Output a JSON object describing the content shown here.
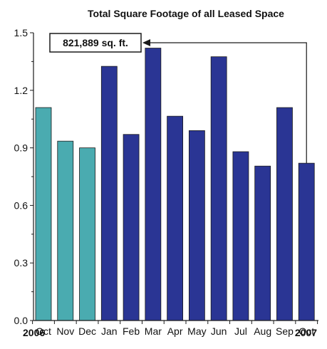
{
  "chart_data": {
    "type": "bar",
    "title": "Total Square Footage of all Leased Space",
    "xlabel": "",
    "ylabel": "",
    "ylim": [
      0,
      1.5
    ],
    "yticks": [
      "0.0",
      "0.3",
      "0.6",
      "0.9",
      "1.2",
      "1.5"
    ],
    "categories": [
      "Oct",
      "Nov",
      "Dec",
      "Jan",
      "Feb",
      "Mar",
      "Apr",
      "May",
      "Jun",
      "Jul",
      "Aug",
      "Sep",
      "Oct"
    ],
    "values": [
      1.11,
      0.935,
      0.9,
      1.325,
      0.97,
      1.42,
      1.065,
      0.99,
      1.375,
      0.88,
      0.805,
      1.11,
      0.82
    ],
    "year_labels": {
      "start": "2006",
      "end": "2007"
    },
    "annotation": {
      "text": "821,889 sq. ft.",
      "target_index": 12
    },
    "colors": {
      "2006": "#4aabb0",
      "2007": "#2a3594",
      "axis": "#1a1a1a"
    },
    "color_groups": [
      "2006",
      "2006",
      "2006",
      "2007",
      "2007",
      "2007",
      "2007",
      "2007",
      "2007",
      "2007",
      "2007",
      "2007",
      "2007"
    ],
    "grid": false
  }
}
